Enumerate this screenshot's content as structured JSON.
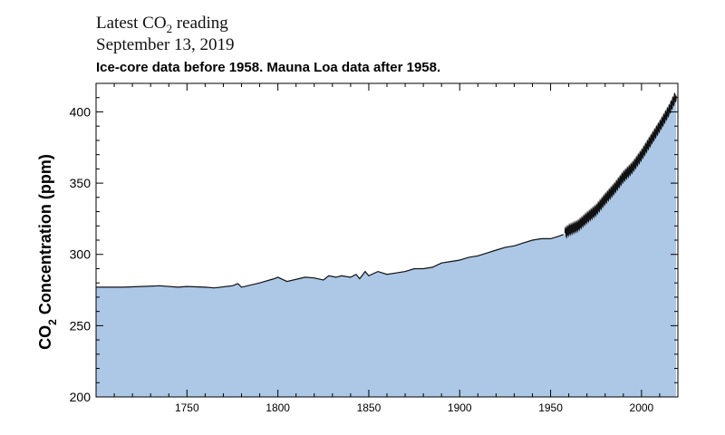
{
  "header": {
    "line1_prefix": "Latest CO",
    "line1_sub": "2",
    "line1_suffix": " reading",
    "line2": "September 13, 2019",
    "subtitle": "Ice-core data before 1958. Mauna Loa data after 1958."
  },
  "colors": {
    "fill": "#adc8e6",
    "line": "#111111",
    "axis": "#000000"
  },
  "chart_data": {
    "type": "area",
    "title": "Latest CO2 reading September 13, 2019",
    "subtitle": "Ice-core data before 1958. Mauna Loa data after 1958.",
    "xlabel": "",
    "ylabel": "CO2 Concentration (ppm)",
    "ylabel_prefix": "CO",
    "ylabel_sub": "2",
    "ylabel_suffix": " Concentration (ppm)",
    "xlim": [
      1700,
      2020
    ],
    "ylim": [
      200,
      420
    ],
    "x_ticks": [
      1750,
      1800,
      1850,
      1900,
      1950,
      2000
    ],
    "y_ticks": [
      200,
      250,
      300,
      350,
      400
    ],
    "grid": false,
    "series": [
      {
        "name": "Ice-core",
        "x": [
          1700,
          1715,
          1725,
          1735,
          1745,
          1750,
          1760,
          1765,
          1775,
          1778,
          1780,
          1790,
          1798,
          1800,
          1805,
          1815,
          1820,
          1825,
          1828,
          1832,
          1835,
          1840,
          1843,
          1845,
          1848,
          1850,
          1855,
          1860,
          1865,
          1870,
          1875,
          1880,
          1885,
          1890,
          1895,
          1900,
          1905,
          1910,
          1915,
          1920,
          1925,
          1930,
          1935,
          1940,
          1945,
          1950,
          1955,
          1957
        ],
        "values": [
          277,
          277,
          277.5,
          278,
          277,
          277.5,
          277,
          276.5,
          278,
          279.5,
          277,
          280,
          283,
          284,
          281,
          284,
          283.5,
          282,
          285,
          284,
          285,
          284,
          286,
          283,
          288,
          285,
          288,
          286,
          287,
          288,
          290,
          290,
          291,
          294,
          295,
          296,
          298,
          299,
          301,
          303,
          305,
          306,
          308,
          310,
          311,
          311,
          313,
          314
        ]
      },
      {
        "name": "Mauna Loa",
        "x": [
          1958,
          1960,
          1965,
          1970,
          1975,
          1980,
          1985,
          1990,
          1995,
          2000,
          2005,
          2010,
          2015,
          2019
        ],
        "values": [
          315,
          317,
          320,
          325.7,
          331,
          338.8,
          346,
          354.4,
          360.9,
          369.7,
          379.8,
          389.9,
          400.8,
          411.4
        ]
      }
    ]
  }
}
